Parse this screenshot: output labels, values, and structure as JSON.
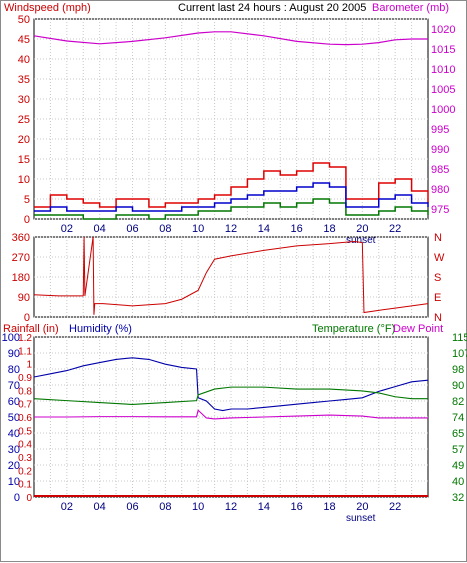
{
  "header": {
    "title": "Current last 24 hours : August 20 2005",
    "left_label": "Windspeed (mph)",
    "right_label": "Barometer (mb)"
  },
  "colors": {
    "wind_gust": "#dd0000",
    "wind_avg": "#0000cc",
    "wind_low": "#007700",
    "barometer": "#cc00cc",
    "direction": "#cc0000",
    "humidity": "#0000aa",
    "temperature": "#007700",
    "dew_point": "#cc00cc",
    "rain": "#cc0000",
    "grid": "#c8c8c8"
  },
  "x_axis": {
    "ticks": [
      "02",
      "04",
      "06",
      "08",
      "10",
      "12",
      "14",
      "16",
      "18",
      "20",
      "22"
    ],
    "event_label": "sunset"
  },
  "chart_data": [
    {
      "type": "line",
      "name_ref": "wind-barometer",
      "x_range_hours": [
        0,
        24
      ],
      "left_axis": {
        "label": "Windspeed (mph)",
        "range": [
          0,
          50
        ],
        "ticks": [
          "0",
          "5",
          "10",
          "15",
          "20",
          "25",
          "30",
          "35",
          "40",
          "45",
          "50"
        ]
      },
      "right_axis": {
        "label": "Barometer (mb)",
        "range": [
          972.5,
          1022.5
        ],
        "ticks": [
          "975",
          "980",
          "985",
          "990",
          "995",
          "1000",
          "1005",
          "1010",
          "1015",
          "1020"
        ]
      },
      "series": [
        {
          "name": "Barometer (mb)",
          "axis": "right",
          "x": [
            0,
            2,
            4,
            6,
            8,
            10,
            11,
            12,
            14,
            16,
            18,
            19,
            20,
            21,
            22,
            23,
            24
          ],
          "values": [
            1018.3,
            1017.0,
            1016.3,
            1016.9,
            1017.8,
            1019.0,
            1019.3,
            1019.3,
            1018.3,
            1016.9,
            1016.2,
            1016.1,
            1016.2,
            1016.6,
            1017.3,
            1017.5,
            1017.5
          ]
        },
        {
          "name": "gust",
          "axis": "left",
          "x": [
            0,
            1,
            2,
            3,
            4,
            5,
            6,
            7,
            8,
            9,
            10,
            11,
            12,
            13,
            14,
            15,
            16,
            17,
            18,
            19,
            20,
            21,
            22,
            23,
            24
          ],
          "values": [
            3,
            6,
            5,
            4,
            3,
            5,
            5,
            3,
            4,
            4,
            5,
            6,
            8,
            10,
            12,
            11,
            12,
            14,
            13,
            5,
            5,
            9,
            10,
            7,
            4
          ]
        },
        {
          "name": "average",
          "axis": "left",
          "x": [
            0,
            1,
            2,
            3,
            4,
            5,
            6,
            7,
            8,
            9,
            10,
            11,
            12,
            13,
            14,
            15,
            16,
            17,
            18,
            19,
            20,
            21,
            22,
            23,
            24
          ],
          "values": [
            2,
            3,
            2,
            2,
            2,
            3,
            2,
            2,
            2,
            3,
            3,
            4,
            5,
            6,
            7,
            7,
            8,
            9,
            8,
            3,
            3,
            5,
            6,
            4,
            3
          ]
        },
        {
          "name": "low",
          "axis": "left",
          "x": [
            0,
            1,
            2,
            3,
            4,
            5,
            6,
            7,
            8,
            9,
            10,
            11,
            12,
            13,
            14,
            15,
            16,
            17,
            18,
            19,
            20,
            21,
            22,
            23,
            24
          ],
          "values": [
            1,
            1,
            1,
            0,
            0,
            1,
            1,
            0,
            1,
            1,
            2,
            2,
            3,
            3,
            4,
            3,
            4,
            5,
            4,
            1,
            1,
            2,
            3,
            2,
            1
          ]
        }
      ]
    },
    {
      "type": "line",
      "name_ref": "wind-direction",
      "x_range_hours": [
        0,
        24
      ],
      "left_axis": {
        "range": [
          0,
          360
        ],
        "ticks": [
          "0",
          "90",
          "180",
          "270",
          "360"
        ]
      },
      "right_axis": {
        "ticks": [
          "N",
          "W",
          "S",
          "E",
          "N"
        ]
      },
      "series": [
        {
          "name": "direction",
          "x": [
            0,
            1.5,
            3,
            3.05,
            3.1,
            3.6,
            3.65,
            3.7,
            4.2,
            6,
            8,
            9,
            10,
            10.5,
            11,
            12,
            14,
            16,
            18,
            19.5,
            20,
            20.1,
            21,
            22,
            23,
            24
          ],
          "values": [
            100,
            95,
            95,
            360,
            95,
            360,
            10,
            60,
            60,
            50,
            60,
            80,
            120,
            200,
            260,
            275,
            300,
            320,
            330,
            340,
            335,
            20,
            30,
            40,
            50,
            60
          ]
        }
      ]
    },
    {
      "type": "line",
      "name_ref": "rain-humidity-temperature",
      "x_range_hours": [
        0,
        24
      ],
      "left_axis_rain": {
        "label": "Rainfall (in)",
        "ticks": [
          "0",
          "0.1",
          "0.2",
          "0.3",
          "0.4",
          "0.5",
          "0.6",
          "0.7",
          "0.8",
          "0.9",
          "1",
          "1.1",
          "1.2"
        ]
      },
      "left_axis_humidity": {
        "label": "Humidity (%)",
        "range": [
          0,
          100
        ],
        "ticks": [
          "0",
          "10",
          "20",
          "30",
          "40",
          "50",
          "60",
          "70",
          "80",
          "90",
          "100"
        ]
      },
      "right_axis": {
        "label": "Temperature (°F)",
        "range": [
          32,
          115
        ],
        "ticks": [
          "32",
          "40",
          "49",
          "57",
          "65",
          "74",
          "82",
          "90",
          "98",
          "107",
          "115"
        ]
      },
      "dew_point_label": "Dew Point",
      "series": [
        {
          "name": "Humidity (%)",
          "axis": "humidity",
          "x": [
            0,
            1,
            2,
            3,
            4,
            5,
            6,
            7,
            8,
            9,
            9.9,
            10,
            10.5,
            11,
            11.5,
            12,
            13,
            14,
            15,
            16,
            17,
            18,
            19,
            20,
            21,
            22,
            23,
            24
          ],
          "values": [
            75,
            77,
            79,
            82,
            84,
            86,
            87,
            86,
            83,
            81,
            80,
            62,
            60,
            55,
            54,
            55,
            55,
            56,
            57,
            58,
            59,
            60,
            61,
            62,
            66,
            69,
            72,
            73
          ]
        },
        {
          "name": "Temperature (°F)",
          "axis": "temperature",
          "x": [
            0,
            2,
            4,
            6,
            8,
            9.9,
            10,
            11,
            12,
            14,
            16,
            18,
            20,
            21,
            22,
            23,
            24
          ],
          "values": [
            83,
            82,
            81,
            80,
            81,
            82,
            85,
            88,
            89,
            89,
            88,
            88,
            87,
            86,
            84,
            83,
            83
          ]
        },
        {
          "name": "Dew Point",
          "axis": "temperature",
          "x": [
            0,
            2,
            4,
            6,
            8,
            9.9,
            10,
            10.5,
            11,
            12,
            14,
            16,
            18,
            20,
            21,
            22,
            23,
            24
          ],
          "values": [
            73.5,
            73.5,
            73.7,
            73.7,
            73.6,
            73.6,
            77,
            73,
            72.5,
            73,
            73.5,
            74,
            74.5,
            74,
            73,
            73,
            73,
            73
          ]
        },
        {
          "name": "Rainfall (in)",
          "axis": "rain",
          "x": [
            0,
            24
          ],
          "values": [
            0,
            0
          ]
        }
      ]
    }
  ]
}
